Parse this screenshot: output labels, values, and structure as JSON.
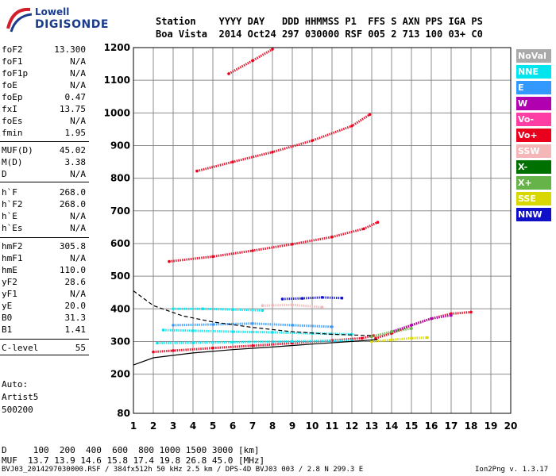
{
  "logo": {
    "line1": "Lowell",
    "line2": "DIGISONDE"
  },
  "header": {
    "line1": "Station    YYYY DAY   DDD HHMMSS P1  FFS S AXN PPS IGA PS",
    "line2": "Boa Vista  2014 Oct24 297 030000 RSF 005 2 713 100 03+ C0"
  },
  "params": [
    {
      "label": "foF2",
      "value": "13.300"
    },
    {
      "label": "foF1",
      "value": "N/A"
    },
    {
      "label": "foF1p",
      "value": "N/A"
    },
    {
      "label": "foE",
      "value": "N/A"
    },
    {
      "label": "foEp",
      "value": "0.47"
    },
    {
      "label": "fxI",
      "value": "13.75"
    },
    {
      "label": "foEs",
      "value": "N/A"
    },
    {
      "label": "fmin",
      "value": "1.95"
    },
    {
      "label": "MUF(D)",
      "value": "45.02"
    },
    {
      "label": "M(D)",
      "value": "3.38"
    },
    {
      "label": "D",
      "value": "N/A"
    },
    {
      "label": "h`F",
      "value": "268.0"
    },
    {
      "label": "h`F2",
      "value": "268.0"
    },
    {
      "label": "h`E",
      "value": "N/A"
    },
    {
      "label": "h`Es",
      "value": "N/A"
    },
    {
      "label": "hmF2",
      "value": "305.8"
    },
    {
      "label": "hmF1",
      "value": "N/A"
    },
    {
      "label": "hmE",
      "value": "110.0"
    },
    {
      "label": "yF2",
      "value": "28.6"
    },
    {
      "label": "yF1",
      "value": "N/A"
    },
    {
      "label": "yE",
      "value": "20.0"
    },
    {
      "label": "B0",
      "value": "31.3"
    },
    {
      "label": "B1",
      "value": "1.41"
    },
    {
      "label": "C-level",
      "value": "55"
    }
  ],
  "auto": [
    "Auto:",
    "Artist5",
    "500200"
  ],
  "bottom": {
    "d_line": "D     100  200  400  600  800 1000 1500 3000 [km]",
    "muf_line": "MUF  13.7 13.9 14.6 15.8 17.4 19.8 26.8 45.0 [MHz]"
  },
  "footer": {
    "left": "BVJ03_2014297030000.RSF / 384fx512h 50 kHz 2.5 km / DPS-4D BVJ03 003 / 2.8 N 299.3 E",
    "right": "Ion2Png v. 1.3.17"
  },
  "legend": [
    {
      "label": "NoVal",
      "color": "#a9a9a9"
    },
    {
      "label": "NNE",
      "color": "#00e5ee"
    },
    {
      "label": "E",
      "color": "#3399ff"
    },
    {
      "label": "W",
      "color": "#b000b0"
    },
    {
      "label": "Vo-",
      "color": "#ff3ea5"
    },
    {
      "label": "Vo+",
      "color": "#e8001c"
    },
    {
      "label": "SSW",
      "color": "#f4b6b6"
    },
    {
      "label": "X-",
      "color": "#007000"
    },
    {
      "label": "X+",
      "color": "#66b34a"
    },
    {
      "label": "SSE",
      "color": "#d8d800"
    },
    {
      "label": "NNW",
      "color": "#1010c8"
    }
  ],
  "chart_data": {
    "type": "scatter",
    "xlim": [
      1,
      20
    ],
    "ylim": [
      80,
      1200
    ],
    "xticks": [
      1,
      2,
      3,
      4,
      5,
      6,
      7,
      8,
      9,
      10,
      11,
      12,
      13,
      14,
      15,
      16,
      17,
      18,
      19,
      20
    ],
    "yticks": [
      80,
      200,
      300,
      400,
      500,
      600,
      700,
      800,
      900,
      1000,
      1100,
      1200
    ],
    "grid": true,
    "traces": [
      {
        "series": "Vo+",
        "color": "#e8001c",
        "x": [
          2.0,
          3.0,
          5.0,
          7.0,
          9.0,
          11.0,
          12.5,
          13.1
        ],
        "y": [
          268,
          272,
          280,
          287,
          295,
          303,
          310,
          318
        ]
      },
      {
        "series": "Vo+",
        "color": "#e8001c",
        "x": [
          2.8,
          5.0,
          7.0,
          9.0,
          11.0,
          12.6,
          13.3
        ],
        "y": [
          545,
          560,
          578,
          598,
          620,
          645,
          665
        ]
      },
      {
        "series": "Vo+",
        "color": "#e8001c",
        "x": [
          4.2,
          6.0,
          8.0,
          10.0,
          12.0,
          12.9
        ],
        "y": [
          822,
          850,
          880,
          915,
          960,
          995
        ]
      },
      {
        "series": "Vo+",
        "color": "#e8001c",
        "x": [
          5.8,
          7.0,
          8.0
        ],
        "y": [
          1120,
          1160,
          1195
        ]
      },
      {
        "series": "Vo+",
        "color": "#e8001c",
        "x": [
          13.2,
          14.0,
          15.0,
          16.0,
          17.0,
          18.0
        ],
        "y": [
          310,
          325,
          350,
          370,
          385,
          390
        ]
      },
      {
        "series": "NNE",
        "color": "#00e5ee",
        "x": [
          2.5,
          4.0,
          6.0,
          8.0,
          10.0,
          12.0
        ],
        "y": [
          335,
          333,
          330,
          328,
          325,
          322
        ]
      },
      {
        "series": "NNE",
        "color": "#00e5ee",
        "x": [
          3.0,
          4.5,
          6.0,
          7.5
        ],
        "y": [
          400,
          400,
          398,
          395
        ]
      },
      {
        "series": "NNE",
        "color": "#00e5ee",
        "x": [
          2.2,
          4.0,
          6.0,
          9.0,
          12.0
        ],
        "y": [
          295,
          296,
          298,
          300,
          303
        ]
      },
      {
        "series": "E",
        "color": "#3399ff",
        "x": [
          3.0,
          5.0,
          7.0,
          9.0,
          11.0
        ],
        "y": [
          350,
          352,
          355,
          350,
          345
        ]
      },
      {
        "series": "NNW",
        "color": "#1010c8",
        "x": [
          8.5,
          9.5,
          10.5,
          11.5
        ],
        "y": [
          430,
          432,
          435,
          433
        ]
      },
      {
        "series": "SSW",
        "color": "#f4b6b6",
        "x": [
          7.5,
          9.0,
          10.5
        ],
        "y": [
          410,
          412,
          405
        ]
      },
      {
        "series": "W",
        "color": "#b000b0",
        "x": [
          14.0,
          15.0,
          16.0,
          17.0
        ],
        "y": [
          330,
          350,
          370,
          380
        ]
      },
      {
        "series": "X+",
        "color": "#66b34a",
        "x": [
          13.0,
          14.0,
          15.0
        ],
        "y": [
          315,
          330,
          340
        ]
      },
      {
        "series": "SSE",
        "color": "#d8d800",
        "x": [
          13.0,
          14.0,
          15.0,
          15.8
        ],
        "y": [
          300,
          305,
          310,
          312
        ]
      }
    ],
    "profile_curves": [
      {
        "style": "solid",
        "x": [
          1.0,
          2.0,
          4.0,
          6.0,
          8.0,
          10.0,
          12.0,
          13.3
        ],
        "y": [
          228,
          250,
          265,
          275,
          283,
          292,
          300,
          306
        ]
      },
      {
        "style": "dashed",
        "x": [
          1.0,
          2.0,
          3.5,
          5.0,
          7.0,
          9.0,
          11.0,
          13.0
        ],
        "y": [
          455,
          410,
          378,
          360,
          343,
          330,
          322,
          318
        ]
      }
    ]
  }
}
